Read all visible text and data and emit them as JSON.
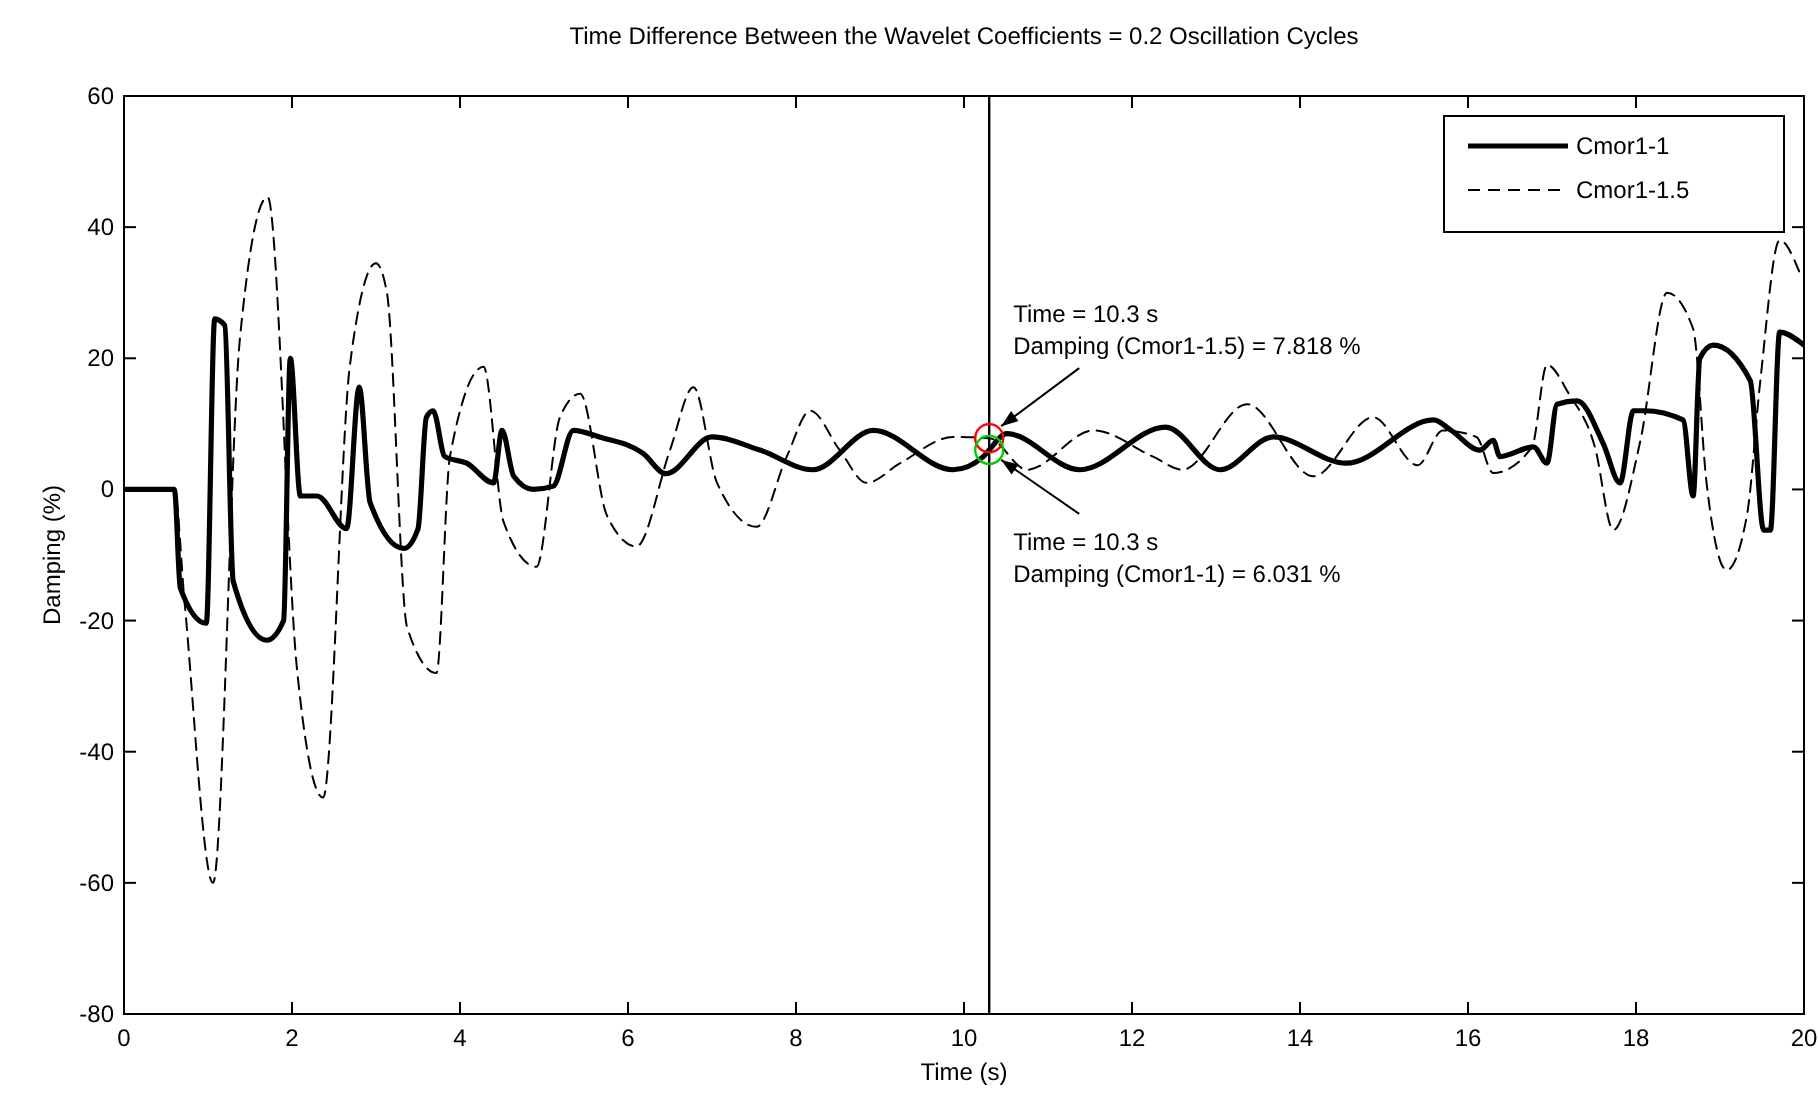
{
  "chart_data": {
    "type": "line",
    "title": "Time Difference Between the Wavelet Coefficients = 0.2 Oscillation Cycles",
    "xlabel": "Time (s)",
    "ylabel": "Damping (%)",
    "xlim": [
      0,
      20
    ],
    "ylim": [
      -80,
      60
    ],
    "xticks": [
      0,
      2,
      4,
      6,
      8,
      10,
      12,
      14,
      16,
      18,
      20
    ],
    "yticks": [
      -80,
      -60,
      -40,
      -20,
      0,
      20,
      40,
      60
    ],
    "grid": false,
    "legend": "top right",
    "series": [
      {
        "name": "Cmor1-1",
        "color": "#000000",
        "line_style": "solid",
        "x": [
          0,
          0.6,
          0.67,
          0.98,
          1.08,
          1.2,
          1.3,
          1.7,
          1.9,
          1.98,
          2.1,
          2.3,
          2.65,
          2.8,
          2.93,
          3.33,
          3.5,
          3.6,
          3.68,
          3.82,
          4.08,
          4.4,
          4.5,
          4.64,
          4.87,
          5.11,
          5.35,
          5.66,
          6.18,
          6.45,
          7.0,
          7.57,
          8.2,
          8.92,
          9.87,
          10.23,
          10.3,
          10.51,
          11.38,
          12.4,
          13.05,
          13.68,
          14.55,
          15.59,
          15.8,
          16.14,
          16.3,
          16.38,
          16.78,
          16.94,
          17.06,
          17.3,
          17.61,
          17.81,
          17.97,
          18.1,
          18.56,
          18.68,
          18.76,
          18.92,
          19.36,
          19.52,
          19.6,
          19.71,
          19.95,
          20
        ],
        "values": [
          0,
          0,
          -15,
          -20.4,
          26,
          25,
          -14,
          -23,
          -20,
          20,
          -1,
          -1,
          -6,
          15.6,
          -2,
          -9,
          -6,
          11,
          12,
          5,
          4,
          1,
          9,
          2,
          0,
          0.5,
          9,
          8,
          5.5,
          2.4,
          8,
          6,
          3,
          9,
          3,
          5,
          6.031,
          8.5,
          3,
          9.5,
          3,
          8,
          4,
          10.6,
          9,
          6,
          7.5,
          5,
          6.5,
          4,
          13,
          13.5,
          7,
          1,
          12,
          12,
          10.6,
          -1,
          20,
          22,
          16.6,
          -6.2,
          -6.2,
          24,
          22.5,
          22
        ]
      },
      {
        "name": "Cmor1-1.5",
        "color": "#000000",
        "line_style": "dashed",
        "x": [
          0,
          0.6,
          0.72,
          1.06,
          1.38,
          1.71,
          2.06,
          2.37,
          2.69,
          3.0,
          3.13,
          3.37,
          3.72,
          3.88,
          4.28,
          4.52,
          4.91,
          5.19,
          5.43,
          5.75,
          6.1,
          6.5,
          6.78,
          7.06,
          7.53,
          7.89,
          8.17,
          8.52,
          8.84,
          9.24,
          9.87,
          10.3,
          10.75,
          11.54,
          12.25,
          12.6,
          13.37,
          14.16,
          14.87,
          15.4,
          15.7,
          16.1,
          16.3,
          16.76,
          16.94,
          17.2,
          17.51,
          17.73,
          18.05,
          18.37,
          18.68,
          18.84,
          19.08,
          19.32,
          19.48,
          19.71,
          19.95
        ],
        "values": [
          0,
          0,
          -17,
          -60,
          23,
          44.6,
          -27.5,
          -47,
          19,
          34.5,
          30,
          -21,
          -28,
          5,
          18.7,
          -5,
          -11.8,
          11,
          14.6,
          -4,
          -8.7,
          6,
          15.6,
          1,
          -5.7,
          5,
          12,
          6,
          1,
          4,
          8,
          7.818,
          3,
          9,
          5,
          3,
          13,
          2,
          11,
          3.7,
          9,
          8,
          2.5,
          6.4,
          19,
          14.6,
          6.5,
          -6.2,
          7.3,
          30,
          24.5,
          1,
          -12.3,
          -4,
          16.6,
          38,
          33
        ]
      }
    ],
    "ref_lines": [
      {
        "axis": "x",
        "value": 10.3
      }
    ],
    "annotations": [
      {
        "text": "Time = 10.3 s\nDamping (Cmor1-1.5) = 7.818 %",
        "x": 10.3,
        "y": 7.818
      },
      {
        "text": "Time = 10.3 s\nDamping (Cmor1-1) = 6.031 %",
        "x": 10.3,
        "y": 6.031
      }
    ]
  }
}
